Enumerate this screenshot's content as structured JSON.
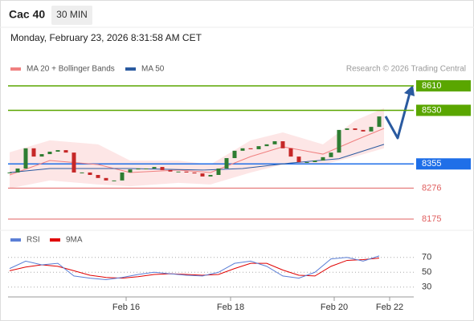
{
  "chart_data": {
    "type": "candlestick",
    "title": "Cac 40",
    "timeframe": "30 MIN",
    "subtitle": "Monday, February 23, 2026 8:31:58 AM CET",
    "source": "Research © 2026 Trading Central",
    "up_color": "#2e7d32",
    "down_color": "#c62828",
    "x": [
      0,
      1,
      2,
      3,
      4,
      5,
      6,
      7,
      8,
      9,
      10,
      11,
      12,
      13,
      14,
      15,
      16,
      17,
      18,
      19,
      20,
      21,
      22,
      23,
      24,
      25,
      26,
      27,
      28,
      29,
      30,
      31,
      32,
      33,
      34,
      35,
      36,
      37,
      38,
      39,
      40,
      41,
      42,
      43,
      44,
      45,
      46
    ],
    "close": [
      8327,
      8340,
      8406,
      8379,
      8387,
      8395,
      8400,
      8392,
      8327,
      8327,
      8319,
      8309,
      8301,
      8301,
      8327,
      8337,
      8340,
      8340,
      8345,
      8335,
      8330,
      8330,
      8327,
      8324,
      8314,
      8319,
      8340,
      8374,
      8398,
      8406,
      8403,
      8413,
      8419,
      8429,
      8406,
      8379,
      8361,
      8361,
      8366,
      8377,
      8392,
      8466,
      8471,
      8466,
      8461,
      8476,
      8510
    ],
    "series": [
      {
        "name": "MA 20 + Bollinger Bands",
        "color": "#f08080",
        "band_color": "#fde0e0",
        "x": [
          0,
          5,
          11,
          15,
          21,
          25,
          30,
          34,
          39,
          43,
          46.6
        ],
        "values": [
          8319,
          8366,
          8353,
          8327,
          8335,
          8327,
          8379,
          8411,
          8387,
          8432,
          8471
        ],
        "upper": [
          8393,
          8432,
          8419,
          8366,
          8366,
          8353,
          8432,
          8458,
          8419,
          8497,
          8537
        ],
        "lower": [
          8275,
          8301,
          8288,
          8282,
          8293,
          8288,
          8327,
          8353,
          8353,
          8379,
          8406
        ]
      },
      {
        "name": "MA 50",
        "color": "#2a5aa0",
        "x": [
          0,
          5,
          15,
          24,
          29,
          35,
          41,
          46.6
        ],
        "values": [
          8327,
          8340,
          8340,
          8335,
          8340,
          8358,
          8372,
          8419
        ]
      }
    ],
    "levels": [
      {
        "value": 8610,
        "color": "#5aa600",
        "boxed": true
      },
      {
        "value": 8530,
        "color": "#5aa600",
        "boxed": true
      },
      {
        "value": 8355,
        "color": "#1f6fe8",
        "boxed": true
      },
      {
        "value": 8276,
        "color": "#e06060",
        "boxed": false
      },
      {
        "value": 8175,
        "color": "#e06060",
        "boxed": false
      }
    ],
    "xlim": [
      0,
      51
    ],
    "xticks": [
      {
        "value": 14.5,
        "label": "Feb 16"
      },
      {
        "value": 27.5,
        "label": "Feb 18"
      },
      {
        "value": 40.4,
        "label": "Feb 20"
      },
      {
        "value": 47.3,
        "label": "Feb 22"
      }
    ],
    "ylim": [
      8145,
      8640
    ],
    "rsi": {
      "ylim": [
        20,
        100
      ],
      "yticks": [
        70,
        50,
        30
      ],
      "series": [
        {
          "name": "RSI",
          "color": "#5b7fd6",
          "x": [
            0,
            2,
            4,
            6,
            8,
            10,
            12,
            14,
            16,
            18,
            20,
            22,
            24,
            26,
            28,
            30,
            32,
            34,
            36,
            38,
            40,
            42,
            44,
            46
          ],
          "values": [
            55,
            65,
            60,
            62,
            45,
            42,
            40,
            43,
            47,
            50,
            48,
            46,
            45,
            50,
            62,
            65,
            58,
            45,
            42,
            50,
            68,
            70,
            65,
            72
          ]
        },
        {
          "name": "9MA",
          "color": "#e00000",
          "x": [
            0,
            2,
            4,
            6,
            8,
            10,
            12,
            14,
            16,
            18,
            20,
            22,
            24,
            26,
            28,
            30,
            32,
            34,
            36,
            38,
            40,
            42,
            44,
            46
          ],
          "values": [
            52,
            57,
            60,
            58,
            52,
            46,
            43,
            42,
            44,
            47,
            48,
            47,
            46,
            47,
            55,
            62,
            62,
            53,
            46,
            45,
            58,
            66,
            67,
            69
          ]
        }
      ]
    }
  }
}
